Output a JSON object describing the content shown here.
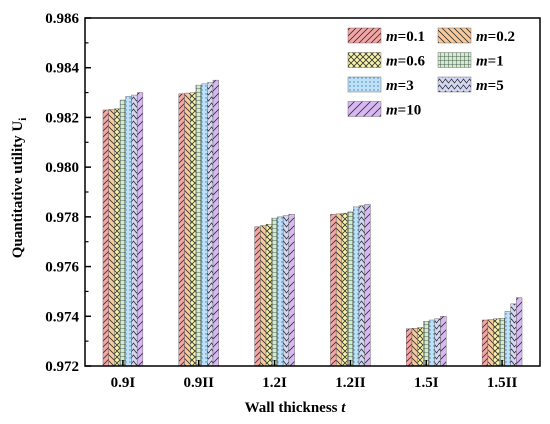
{
  "chart_data": {
    "type": "bar",
    "title": "",
    "xlabel": "Wall thickness",
    "xlabel_var": "t",
    "ylabel": "Quantitative utility U",
    "ylabel_sub": "i",
    "categories": [
      "0.9I",
      "0.9II",
      "1.2I",
      "1.2II",
      "1.5I",
      "1.5II"
    ],
    "ylim": [
      0.972,
      0.986
    ],
    "yticks": [
      "0.972",
      "0.974",
      "0.976",
      "0.978",
      "0.980",
      "0.982",
      "0.984",
      "0.986"
    ],
    "grid": false,
    "legend_position": "top-right",
    "series": [
      {
        "name": "=0.1",
        "name_var": "m",
        "color": "#f4a6a6",
        "hatch": "diag-right",
        "values": [
          0.9823,
          0.98295,
          0.9776,
          0.9781,
          0.9735,
          0.97385
        ]
      },
      {
        "name": "=0.2",
        "name_var": "m",
        "color": "#f9c99a",
        "hatch": "diag-left",
        "values": [
          0.98232,
          0.98298,
          0.97765,
          0.97812,
          0.97352,
          0.97387
        ]
      },
      {
        "name": "=0.6",
        "name_var": "m",
        "color": "#f7f3a8",
        "hatch": "cross",
        "values": [
          0.98235,
          0.983,
          0.9777,
          0.97815,
          0.97355,
          0.9739
        ]
      },
      {
        "name": "=1",
        "name_var": "m",
        "color": "#cdeecd",
        "hatch": "grid",
        "values": [
          0.9827,
          0.9833,
          0.97795,
          0.9782,
          0.9738,
          0.97392
        ]
      },
      {
        "name": "=3",
        "name_var": "m",
        "color": "#bfe1f7",
        "hatch": "dots",
        "values": [
          0.98285,
          0.98335,
          0.978,
          0.9784,
          0.97385,
          0.9742
        ]
      },
      {
        "name": "=5",
        "name_var": "m",
        "color": "#d3d7f5",
        "hatch": "zigzag",
        "values": [
          0.9829,
          0.9834,
          0.97805,
          0.97845,
          0.9739,
          0.9745
        ]
      },
      {
        "name": "=10",
        "name_var": "m",
        "color": "#d8b8f2",
        "hatch": "diag-right-wide",
        "values": [
          0.983,
          0.9835,
          0.9781,
          0.9785,
          0.974,
          0.97475
        ]
      }
    ]
  }
}
